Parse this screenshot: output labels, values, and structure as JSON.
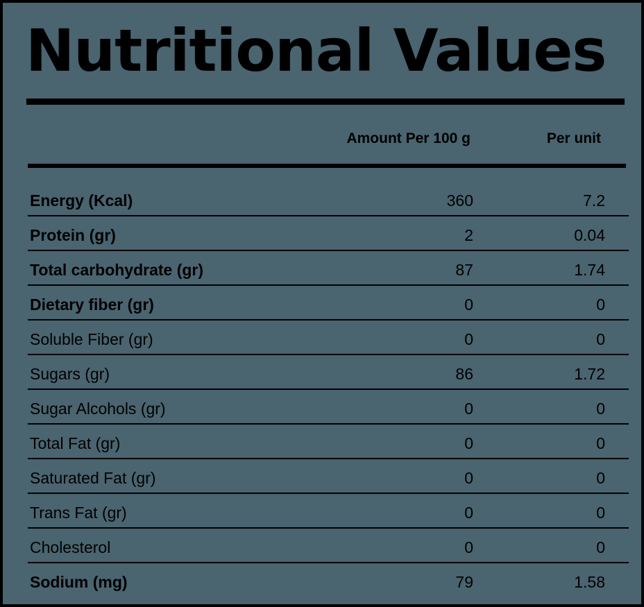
{
  "title": "Nutritional Values",
  "columns": {
    "amount": "Amount Per 100 g",
    "unit": "Per unit"
  },
  "rows": [
    {
      "label": "Energy (Kcal)",
      "per_100g": "360",
      "per_unit": "7.2",
      "bold": true
    },
    {
      "label": "Protein (gr)",
      "per_100g": "2",
      "per_unit": "0.04",
      "bold": true
    },
    {
      "label": "Total carbohydrate (gr)",
      "per_100g": "87",
      "per_unit": "1.74",
      "bold": true
    },
    {
      "label": "Dietary fiber (gr)",
      "per_100g": "0",
      "per_unit": "0",
      "bold": true
    },
    {
      "label": "Soluble Fiber (gr)",
      "per_100g": "0",
      "per_unit": "0",
      "bold": false
    },
    {
      "label": "Sugars (gr)",
      "per_100g": "86",
      "per_unit": "1.72",
      "bold": false
    },
    {
      "label": "Sugar Alcohols (gr)",
      "per_100g": "0",
      "per_unit": "0",
      "bold": false
    },
    {
      "label": "Total Fat (gr)",
      "per_100g": "0",
      "per_unit": "0",
      "bold": false
    },
    {
      "label": "Saturated Fat (gr)",
      "per_100g": "0",
      "per_unit": "0",
      "bold": false
    },
    {
      "label": "Trans Fat (gr)",
      "per_100g": "0",
      "per_unit": "0",
      "bold": false
    },
    {
      "label": "Cholesterol",
      "per_100g": "0",
      "per_unit": "0",
      "bold": false
    },
    {
      "label": "Sodium (mg)",
      "per_100g": "79",
      "per_unit": "1.58",
      "bold": true
    }
  ],
  "colors": {
    "background": "#4a6470",
    "text": "#000000"
  }
}
